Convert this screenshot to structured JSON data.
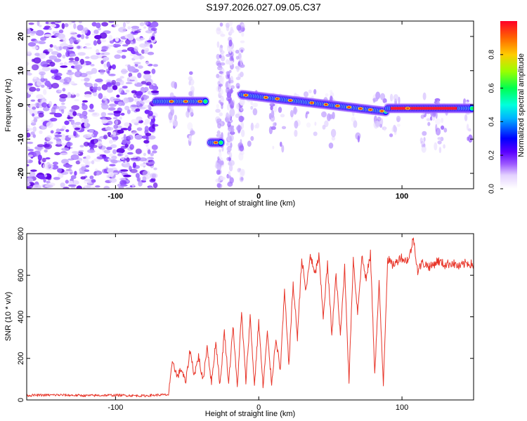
{
  "title": "S197.2026.027.09.05.C37",
  "chart_data": [
    {
      "type": "heatmap",
      "name": "spectrogram",
      "xlabel": "Height of straight line (km)",
      "ylabel": "Frequency (Hz)",
      "xlim": [
        -162,
        150
      ],
      "ylim": [
        -24.5,
        24.5
      ],
      "xticks": [
        -100,
        0,
        100
      ],
      "yticks": [
        -20,
        -10,
        0,
        10,
        20
      ],
      "noise_region_x": [
        -162,
        -72
      ],
      "band_segments": [
        {
          "x0": -72,
          "x1": -36,
          "f": 1.0
        },
        {
          "x0": -34,
          "x1": -26,
          "f": -11.0
        },
        {
          "x0": -12,
          "x1": 90,
          "f0": 3.0,
          "f1": -2.0
        },
        {
          "x0": 90,
          "x1": 150,
          "f": -1.0
        }
      ],
      "colorbar": {
        "label": "Normalized spectral amplitude",
        "min": 0.0,
        "max": 1.0,
        "ticks": [
          0.0,
          0.2,
          0.4,
          0.6,
          0.8
        ],
        "tick_labels": [
          "0.0",
          "0.2",
          "0.4",
          "0.6",
          "0.8"
        ]
      }
    },
    {
      "type": "line",
      "name": "snr",
      "xlabel": "Height of straight line (km)",
      "ylabel": "SNR (10 * v/v)",
      "xlim": [
        -162,
        150
      ],
      "ylim": [
        0,
        800
      ],
      "xticks": [
        -100,
        0,
        100
      ],
      "yticks": [
        0,
        200,
        400,
        600,
        800
      ],
      "color": "#e8362a",
      "series": [
        {
          "name": "SNR",
          "x": [
            -162,
            -140,
            -120,
            -100,
            -80,
            -70,
            -63,
            -60,
            -57,
            -54,
            -51,
            -48,
            -45,
            -42,
            -39,
            -36,
            -33,
            -30,
            -27,
            -24,
            -21,
            -18,
            -15,
            -12,
            -9,
            -6,
            -3,
            0,
            3,
            6,
            9,
            12,
            15,
            18,
            21,
            24,
            27,
            30,
            33,
            36,
            39,
            42,
            45,
            48,
            51,
            54,
            57,
            60,
            63,
            66,
            69,
            72,
            75,
            78,
            81,
            84,
            87,
            90,
            93,
            96,
            99,
            102,
            105,
            108,
            111,
            114,
            117,
            120,
            125,
            130,
            135,
            140,
            145,
            150
          ],
          "values": [
            22,
            24,
            21,
            23,
            20,
            24,
            25,
            190,
            110,
            150,
            80,
            240,
            120,
            210,
            90,
            260,
            80,
            280,
            70,
            330,
            80,
            360,
            60,
            420,
            90,
            400,
            70,
            380,
            60,
            320,
            80,
            300,
            140,
            520,
            170,
            560,
            300,
            680,
            520,
            700,
            600,
            690,
            400,
            650,
            320,
            600,
            310,
            640,
            90,
            680,
            420,
            690,
            580,
            700,
            130,
            560,
            80,
            680,
            650,
            660,
            690,
            670,
            680,
            780,
            620,
            660,
            650,
            640,
            670,
            650,
            660,
            640,
            660,
            650
          ]
        }
      ]
    }
  ]
}
